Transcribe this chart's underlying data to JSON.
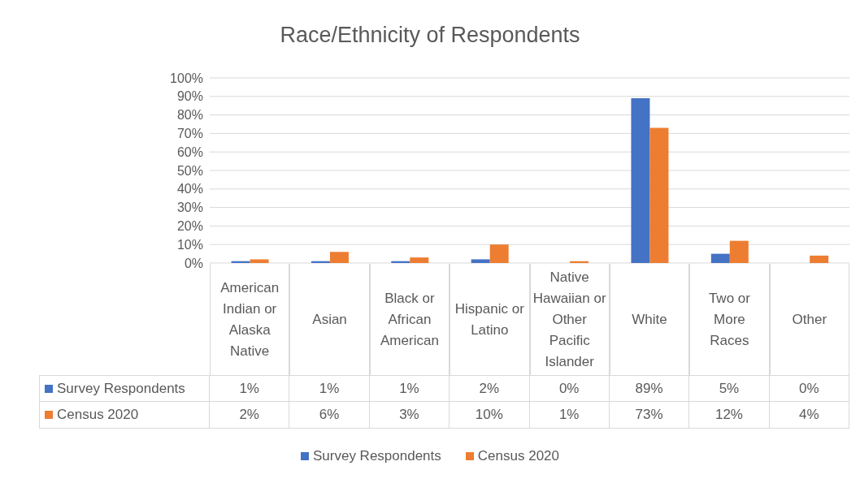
{
  "chart_data": {
    "type": "bar",
    "title": "Race/Ethnicity of Respondents",
    "categories": [
      "American Indian or Alaska Native",
      "Asian",
      "Black or African American",
      "Hispanic or Latino",
      "Native Hawaiian or Other Pacific Islander",
      "White",
      "Two or More Races",
      "Other"
    ],
    "series": [
      {
        "name": "Survey Respondents",
        "color": "#4472c4",
        "values": [
          1,
          1,
          1,
          2,
          0,
          89,
          5,
          0
        ],
        "value_labels": [
          "1%",
          "1%",
          "1%",
          "2%",
          "0%",
          "89%",
          "5%",
          "0%"
        ]
      },
      {
        "name": "Census 2020",
        "color": "#ed7d31",
        "values": [
          2,
          6,
          3,
          10,
          1,
          73,
          12,
          4
        ],
        "value_labels": [
          "2%",
          "6%",
          "3%",
          "10%",
          "1%",
          "73%",
          "12%",
          "4%"
        ]
      }
    ],
    "ylim": [
      0,
      100
    ],
    "yticks": [
      {
        "value": 0,
        "label": "0%"
      },
      {
        "value": 10,
        "label": "10%"
      },
      {
        "value": 20,
        "label": "20%"
      },
      {
        "value": 30,
        "label": "30%"
      },
      {
        "value": 40,
        "label": "40%"
      },
      {
        "value": 50,
        "label": "50%"
      },
      {
        "value": 60,
        "label": "60%"
      },
      {
        "value": 70,
        "label": "70%"
      },
      {
        "value": 80,
        "label": "80%"
      },
      {
        "value": 90,
        "label": "90%"
      },
      {
        "value": 100,
        "label": "100%"
      }
    ],
    "grid": "y",
    "legend": "bottom"
  }
}
